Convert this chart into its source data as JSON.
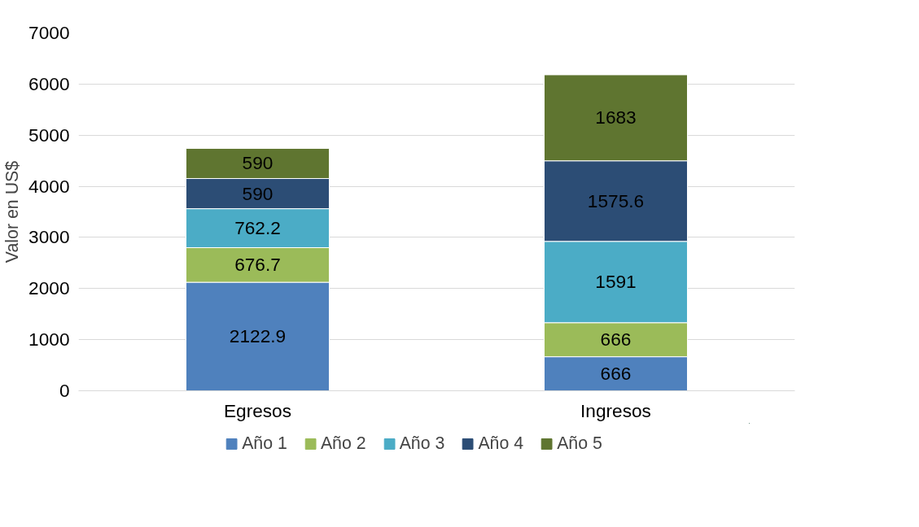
{
  "chart_data": {
    "type": "bar",
    "stacked": true,
    "ylabel": "Valor en US$",
    "categories": [
      "Egresos",
      "Ingresos"
    ],
    "series": [
      {
        "name": "Año 1",
        "color": "#4f81bd",
        "values": [
          2122.9,
          666
        ]
      },
      {
        "name": "Año 2",
        "color": "#9bbb59",
        "values": [
          676.7,
          666
        ]
      },
      {
        "name": "Año 3",
        "color": "#4bacc6",
        "values": [
          762.2,
          1591
        ]
      },
      {
        "name": "Año 4",
        "color": "#2c4d75",
        "values": [
          590,
          1575.6
        ]
      },
      {
        "name": "Año 5",
        "color": "#5f7530",
        "values": [
          590,
          1683
        ]
      }
    ],
    "ylim": [
      0,
      7000
    ],
    "yticks": [
      0,
      1000,
      2000,
      3000,
      4000,
      5000,
      6000,
      7000
    ],
    "grid": "y",
    "legend": "bottom",
    "data_labels": true
  }
}
